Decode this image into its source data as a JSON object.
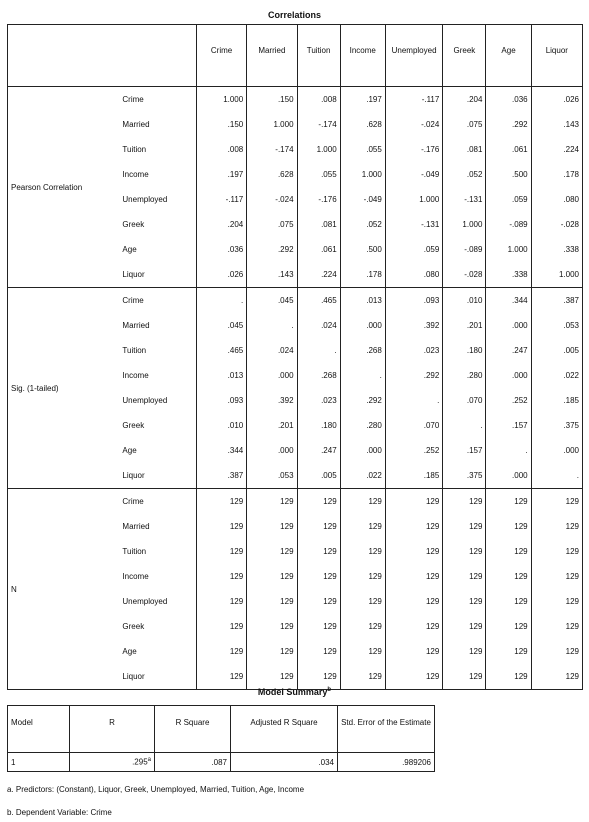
{
  "correlations": {
    "title": "Correlations",
    "columns": [
      "Crime",
      "Married",
      "Tuition",
      "Income",
      "Unemployed",
      "Greek",
      "Age",
      "Liquor"
    ],
    "groups": [
      {
        "label": "Pearson Correlation",
        "rows": [
          {
            "label": "Crime",
            "values": [
              "1.000",
              ".150",
              ".008",
              ".197",
              "-.117",
              ".204",
              ".036",
              ".026"
            ]
          },
          {
            "label": "Married",
            "values": [
              ".150",
              "1.000",
              "-.174",
              ".628",
              "-.024",
              ".075",
              ".292",
              ".143"
            ]
          },
          {
            "label": "Tuition",
            "values": [
              ".008",
              "-.174",
              "1.000",
              ".055",
              "-.176",
              ".081",
              ".061",
              ".224"
            ]
          },
          {
            "label": "Income",
            "values": [
              ".197",
              ".628",
              ".055",
              "1.000",
              "-.049",
              ".052",
              ".500",
              ".178"
            ]
          },
          {
            "label": "Unemployed",
            "values": [
              "-.117",
              "-.024",
              "-.176",
              "-.049",
              "1.000",
              "-.131",
              ".059",
              ".080"
            ]
          },
          {
            "label": "Greek",
            "values": [
              ".204",
              ".075",
              ".081",
              ".052",
              "-.131",
              "1.000",
              "-.089",
              "-.028"
            ]
          },
          {
            "label": "Age",
            "values": [
              ".036",
              ".292",
              ".061",
              ".500",
              ".059",
              "-.089",
              "1.000",
              ".338"
            ]
          },
          {
            "label": "Liquor",
            "values": [
              ".026",
              ".143",
              ".224",
              ".178",
              ".080",
              "-.028",
              ".338",
              "1.000"
            ]
          }
        ]
      },
      {
        "label": "Sig. (1-tailed)",
        "rows": [
          {
            "label": "Crime",
            "values": [
              ".",
              ".045",
              ".465",
              ".013",
              ".093",
              ".010",
              ".344",
              ".387"
            ]
          },
          {
            "label": "Married",
            "values": [
              ".045",
              ".",
              ".024",
              ".000",
              ".392",
              ".201",
              ".000",
              ".053"
            ]
          },
          {
            "label": "Tuition",
            "values": [
              ".465",
              ".024",
              ".",
              ".268",
              ".023",
              ".180",
              ".247",
              ".005"
            ]
          },
          {
            "label": "Income",
            "values": [
              ".013",
              ".000",
              ".268",
              ".",
              ".292",
              ".280",
              ".000",
              ".022"
            ]
          },
          {
            "label": "Unemployed",
            "values": [
              ".093",
              ".392",
              ".023",
              ".292",
              ".",
              ".070",
              ".252",
              ".185"
            ]
          },
          {
            "label": "Greek",
            "values": [
              ".010",
              ".201",
              ".180",
              ".280",
              ".070",
              ".",
              ".157",
              ".375"
            ]
          },
          {
            "label": "Age",
            "values": [
              ".344",
              ".000",
              ".247",
              ".000",
              ".252",
              ".157",
              ".",
              ".000"
            ]
          },
          {
            "label": "Liquor",
            "values": [
              ".387",
              ".053",
              ".005",
              ".022",
              ".185",
              ".375",
              ".000",
              "."
            ]
          }
        ]
      },
      {
        "label": "N",
        "rows": [
          {
            "label": "Crime",
            "values": [
              "129",
              "129",
              "129",
              "129",
              "129",
              "129",
              "129",
              "129"
            ]
          },
          {
            "label": "Married",
            "values": [
              "129",
              "129",
              "129",
              "129",
              "129",
              "129",
              "129",
              "129"
            ]
          },
          {
            "label": "Tuition",
            "values": [
              "129",
              "129",
              "129",
              "129",
              "129",
              "129",
              "129",
              "129"
            ]
          },
          {
            "label": "Income",
            "values": [
              "129",
              "129",
              "129",
              "129",
              "129",
              "129",
              "129",
              "129"
            ]
          },
          {
            "label": "Unemployed",
            "values": [
              "129",
              "129",
              "129",
              "129",
              "129",
              "129",
              "129",
              "129"
            ]
          },
          {
            "label": "Greek",
            "values": [
              "129",
              "129",
              "129",
              "129",
              "129",
              "129",
              "129",
              "129"
            ]
          },
          {
            "label": "Age",
            "values": [
              "129",
              "129",
              "129",
              "129",
              "129",
              "129",
              "129",
              "129"
            ]
          },
          {
            "label": "Liquor",
            "values": [
              "129",
              "129",
              "129",
              "129",
              "129",
              "129",
              "129",
              "129"
            ]
          }
        ]
      }
    ]
  },
  "model_summary": {
    "title": "Model Summary",
    "title_sup": "b",
    "headers": [
      "Model",
      "R",
      "R Square",
      "Adjusted R Square",
      "Std. Error of the Estimate"
    ],
    "row": {
      "model": "1",
      "r": ".295",
      "r_sup": "a",
      "r_square": ".087",
      "adj_r_square": ".034",
      "std_error": ".989206"
    }
  },
  "notes": {
    "a": "a. Predictors: (Constant), Liquor, Greek, Unemployed, Married, Tuition, Age, Income",
    "b": "b. Dependent Variable: Crime"
  }
}
